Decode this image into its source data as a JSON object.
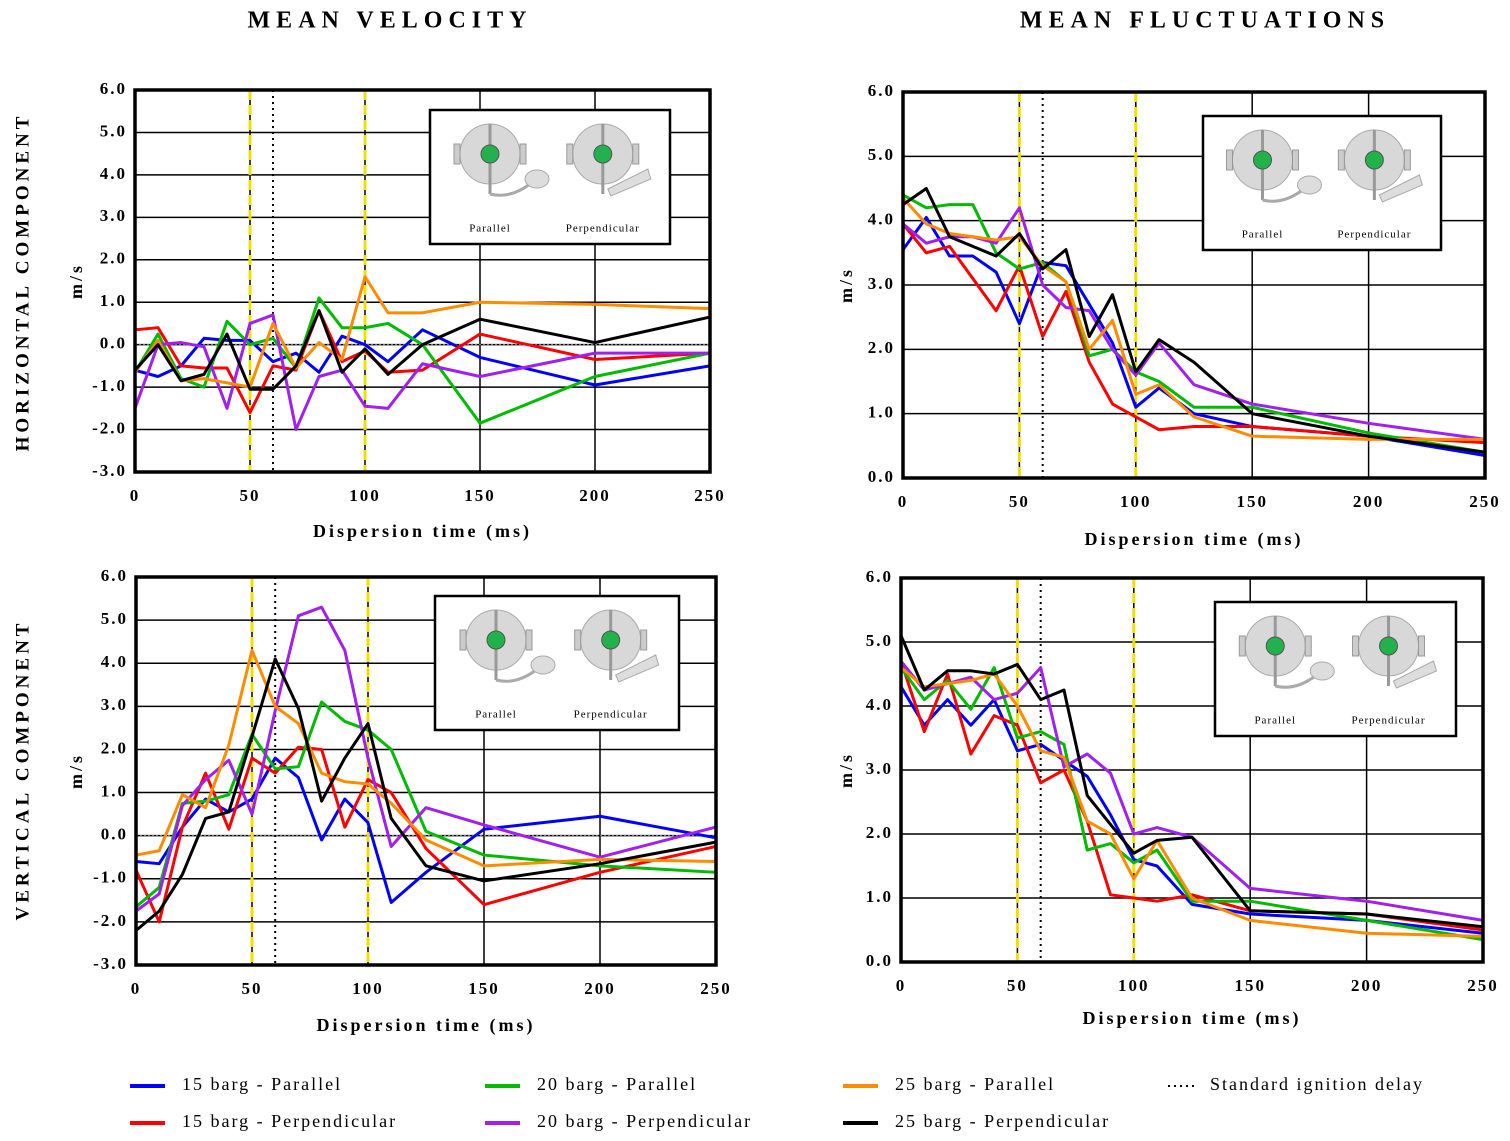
{
  "column_titles": [
    "MEAN VELOCITY",
    "MEAN FLUCTUATIONS"
  ],
  "row_titles": [
    "HORIZONTAL COMPONENT",
    "VERTICAL COMPONENT"
  ],
  "inset_labels": [
    "Parallel",
    "Perpendicular"
  ],
  "ignition_delay": {
    "label": "Standard ignition delay",
    "x": 60
  },
  "yellow_lines_x": [
    50,
    100
  ],
  "chart_data": [
    {
      "type": "line",
      "ylabel": "m/s",
      "xlabel": "Dispersion time (ms)",
      "x": [
        0,
        10,
        20,
        30,
        40,
        50,
        60,
        70,
        80,
        90,
        100,
        110,
        125,
        150,
        200,
        250
      ],
      "xlim": [
        0,
        250
      ],
      "xticks": [
        0,
        50,
        100,
        150,
        200,
        250
      ],
      "ylim": [
        -3,
        6
      ],
      "zero_line": true,
      "yticks": [
        {
          "value": -3,
          "label": "-3.0"
        },
        {
          "value": -2,
          "label": "-2.0"
        },
        {
          "value": -1,
          "label": "-1.0"
        },
        {
          "value": 0,
          "label": "0.0"
        },
        {
          "value": 1,
          "label": "1.0"
        },
        {
          "value": 2,
          "label": "2.0"
        },
        {
          "value": 3,
          "label": "3.0"
        },
        {
          "value": 4,
          "label": "4.0"
        },
        {
          "value": 5,
          "label": "5.0"
        },
        {
          "value": 6,
          "label": "6.0"
        }
      ],
      "series": [
        {
          "name": "15 barg - Parallel",
          "color": "#0000ff",
          "values": [
            -0.6,
            -0.75,
            -0.5,
            0.15,
            0.1,
            0.1,
            -0.4,
            -0.2,
            -0.65,
            0.2,
            0.0,
            -0.4,
            0.35,
            -0.3,
            -0.95,
            -0.5
          ]
        },
        {
          "name": "15 barg - Perpendicular",
          "color": "#ff0000",
          "values": [
            0.35,
            0.4,
            -0.5,
            -0.55,
            -0.55,
            -1.6,
            -0.5,
            -0.6,
            0.8,
            -0.4,
            -0.15,
            -0.65,
            -0.6,
            0.25,
            -0.35,
            -0.2
          ]
        },
        {
          "name": "20 barg - Parallel",
          "color": "#00bb00",
          "values": [
            -0.65,
            0.25,
            -0.8,
            -1.0,
            0.55,
            0.0,
            0.15,
            -0.55,
            1.1,
            0.4,
            0.4,
            0.5,
            0.0,
            -1.85,
            -0.75,
            -0.2
          ]
        },
        {
          "name": "20 barg - Perpendicular",
          "color": "#a020f0",
          "values": [
            -1.5,
            0.0,
            0.05,
            -0.05,
            -1.5,
            0.5,
            0.7,
            -2.0,
            -0.75,
            -0.6,
            -1.45,
            -1.5,
            -0.45,
            -0.75,
            -0.2,
            -0.2
          ]
        },
        {
          "name": "25 barg - Parallel",
          "color": "#ff8c00",
          "values": [
            -0.65,
            0.1,
            -0.85,
            -0.8,
            -0.9,
            -1.0,
            0.5,
            -0.55,
            0.05,
            -0.35,
            1.6,
            0.75,
            0.75,
            1.0,
            0.95,
            0.85
          ]
        },
        {
          "name": "25 barg - Perpendicular",
          "color": "#000000",
          "values": [
            -0.6,
            0.0,
            -0.85,
            -0.7,
            0.25,
            -1.05,
            -1.05,
            -0.5,
            0.8,
            -0.65,
            -0.1,
            -0.7,
            0.0,
            0.6,
            0.05,
            0.65
          ]
        }
      ]
    },
    {
      "type": "line",
      "ylabel": "m/s",
      "xlabel": "Dispersion time (ms)",
      "x": [
        0,
        10,
        20,
        30,
        40,
        50,
        60,
        70,
        80,
        90,
        100,
        110,
        125,
        150,
        200,
        250
      ],
      "xlim": [
        0,
        250
      ],
      "xticks": [
        0,
        50,
        100,
        150,
        200,
        250
      ],
      "ylim": [
        0,
        6
      ],
      "zero_line": false,
      "yticks": [
        {
          "value": 0,
          "label": "0.0"
        },
        {
          "value": 1,
          "label": "1.0"
        },
        {
          "value": 2,
          "label": "2.0"
        },
        {
          "value": 3,
          "label": "3.0"
        },
        {
          "value": 4,
          "label": "4.0"
        },
        {
          "value": 5,
          "label": "5.0"
        },
        {
          "value": 6,
          "label": "6.0"
        }
      ],
      "series": [
        {
          "name": "15 barg - Parallel",
          "color": "#0000ff",
          "values": [
            3.55,
            4.05,
            3.45,
            3.45,
            3.2,
            2.4,
            3.35,
            3.3,
            2.7,
            2.1,
            1.1,
            1.4,
            1.0,
            0.8,
            0.65,
            0.35
          ]
        },
        {
          "name": "15 barg - Perpendicular",
          "color": "#ff0000",
          "values": [
            3.95,
            3.5,
            3.6,
            3.1,
            2.6,
            3.3,
            2.2,
            2.9,
            1.8,
            1.15,
            0.95,
            0.75,
            0.8,
            0.8,
            0.65,
            0.55
          ]
        },
        {
          "name": "20 barg - Parallel",
          "color": "#00bb00",
          "values": [
            4.4,
            4.2,
            4.25,
            4.25,
            3.5,
            3.25,
            3.35,
            3.05,
            1.9,
            2.0,
            1.65,
            1.5,
            1.1,
            1.1,
            0.7,
            0.4
          ]
        },
        {
          "name": "20 barg - Perpendicular",
          "color": "#a020f0",
          "values": [
            3.95,
            3.65,
            3.75,
            3.75,
            3.65,
            4.2,
            3.0,
            2.65,
            2.6,
            2.0,
            1.6,
            2.1,
            1.45,
            1.15,
            0.85,
            0.6
          ]
        },
        {
          "name": "25 barg - Parallel",
          "color": "#ff8c00",
          "values": [
            4.35,
            3.95,
            3.8,
            3.75,
            3.7,
            3.75,
            3.3,
            3.05,
            2.0,
            2.45,
            1.3,
            1.45,
            0.95,
            0.65,
            0.6,
            0.6
          ]
        },
        {
          "name": "25 barg - Perpendicular",
          "color": "#000000",
          "values": [
            4.25,
            4.5,
            3.75,
            3.6,
            3.45,
            3.8,
            3.25,
            3.55,
            2.2,
            2.85,
            1.65,
            2.15,
            1.8,
            1.0,
            0.65,
            0.4
          ]
        }
      ]
    },
    {
      "type": "line",
      "ylabel": "m/s",
      "xlabel": "Dispersion time (ms)",
      "x": [
        0,
        10,
        20,
        30,
        40,
        50,
        60,
        70,
        80,
        90,
        100,
        110,
        125,
        150,
        200,
        250
      ],
      "xlim": [
        0,
        250
      ],
      "xticks": [
        0,
        50,
        100,
        150,
        200,
        250
      ],
      "ylim": [
        -3,
        6
      ],
      "zero_line": true,
      "yticks": [
        {
          "value": -3,
          "label": "-3.0"
        },
        {
          "value": -2,
          "label": "-2.0"
        },
        {
          "value": -1,
          "label": "-1.0"
        },
        {
          "value": 0,
          "label": "0.0"
        },
        {
          "value": 1,
          "label": "1.0"
        },
        {
          "value": 2,
          "label": "2.0"
        },
        {
          "value": 3,
          "label": "3.0"
        },
        {
          "value": 4,
          "label": "4.0"
        },
        {
          "value": 5,
          "label": "5.0"
        },
        {
          "value": 6,
          "label": "6.0"
        }
      ],
      "series": [
        {
          "name": "15 barg - Parallel",
          "color": "#0000ff",
          "values": [
            -0.6,
            -0.65,
            0.2,
            0.85,
            0.55,
            0.85,
            1.8,
            1.35,
            -0.1,
            0.85,
            0.3,
            -1.55,
            -0.85,
            0.15,
            0.45,
            -0.05
          ]
        },
        {
          "name": "15 barg - Perpendicular",
          "color": "#ff0000",
          "values": [
            -0.8,
            -2.0,
            0.2,
            1.45,
            0.15,
            1.8,
            1.45,
            2.05,
            2.0,
            0.2,
            1.3,
            1.0,
            -0.3,
            -1.6,
            -0.85,
            -0.25
          ]
        },
        {
          "name": "20 barg - Parallel",
          "color": "#00bb00",
          "values": [
            -1.65,
            -1.2,
            0.75,
            0.8,
            0.95,
            2.35,
            1.55,
            1.6,
            3.1,
            2.65,
            2.45,
            2.0,
            0.1,
            -0.45,
            -0.7,
            -0.85
          ]
        },
        {
          "name": "20 barg - Perpendicular",
          "color": "#a020f0",
          "values": [
            -1.75,
            -1.35,
            0.7,
            1.3,
            1.75,
            0.5,
            2.9,
            5.1,
            5.3,
            4.3,
            1.8,
            -0.25,
            0.65,
            0.25,
            -0.5,
            0.2
          ]
        },
        {
          "name": "25 barg - Parallel",
          "color": "#ff8c00",
          "values": [
            -0.45,
            -0.35,
            0.95,
            0.65,
            2.1,
            4.3,
            3.0,
            2.6,
            1.45,
            1.25,
            1.2,
            0.75,
            -0.1,
            -0.7,
            -0.55,
            -0.6
          ]
        },
        {
          "name": "25 barg - Perpendicular",
          "color": "#000000",
          "values": [
            -2.2,
            -1.75,
            -0.9,
            0.4,
            0.55,
            2.3,
            4.1,
            2.95,
            0.8,
            1.8,
            2.6,
            0.4,
            -0.7,
            -1.05,
            -0.65,
            -0.15
          ]
        }
      ]
    },
    {
      "type": "line",
      "ylabel": "m/s",
      "xlabel": "Dispersion time (ms)",
      "x": [
        0,
        10,
        20,
        30,
        40,
        50,
        60,
        70,
        80,
        90,
        100,
        110,
        125,
        150,
        200,
        250
      ],
      "xlim": [
        0,
        250
      ],
      "xticks": [
        0,
        50,
        100,
        150,
        200,
        250
      ],
      "ylim": [
        0,
        6
      ],
      "zero_line": false,
      "yticks": [
        {
          "value": 0,
          "label": "0.0"
        },
        {
          "value": 1,
          "label": "1.0"
        },
        {
          "value": 2,
          "label": "2.0"
        },
        {
          "value": 3,
          "label": "3.0"
        },
        {
          "value": 4,
          "label": "4.0"
        },
        {
          "value": 5,
          "label": "5.0"
        },
        {
          "value": 6,
          "label": "6.0"
        }
      ],
      "series": [
        {
          "name": "15 barg - Parallel",
          "color": "#0000ff",
          "values": [
            4.3,
            3.7,
            4.1,
            3.7,
            4.1,
            3.3,
            3.4,
            3.15,
            2.9,
            2.3,
            1.6,
            1.5,
            0.9,
            0.75,
            0.65,
            0.45
          ]
        },
        {
          "name": "15 barg - Perpendicular",
          "color": "#ff0000",
          "values": [
            4.7,
            3.6,
            4.5,
            3.25,
            3.85,
            3.7,
            2.8,
            3.0,
            2.2,
            1.05,
            1.0,
            0.95,
            1.05,
            0.8,
            0.75,
            0.5
          ]
        },
        {
          "name": "20 barg - Parallel",
          "color": "#00bb00",
          "values": [
            4.6,
            4.1,
            4.4,
            3.95,
            4.6,
            3.5,
            3.6,
            3.4,
            1.75,
            1.85,
            1.55,
            1.75,
            0.95,
            0.95,
            0.65,
            0.35
          ]
        },
        {
          "name": "20 barg - Perpendicular",
          "color": "#a020f0",
          "values": [
            4.7,
            4.25,
            4.35,
            4.45,
            4.1,
            4.2,
            4.6,
            3.05,
            3.25,
            2.95,
            2.0,
            2.1,
            1.95,
            1.15,
            0.95,
            0.65
          ]
        },
        {
          "name": "25 barg - Parallel",
          "color": "#ff8c00",
          "values": [
            4.6,
            4.3,
            4.35,
            4.4,
            4.5,
            4.0,
            3.3,
            3.2,
            2.2,
            2.0,
            1.3,
            1.9,
            1.0,
            0.65,
            0.45,
            0.4
          ]
        },
        {
          "name": "25 barg - Perpendicular",
          "color": "#000000",
          "values": [
            5.1,
            4.25,
            4.55,
            4.55,
            4.5,
            4.65,
            4.1,
            4.25,
            2.6,
            2.15,
            1.7,
            1.9,
            1.95,
            0.8,
            0.75,
            0.55
          ]
        }
      ]
    }
  ]
}
